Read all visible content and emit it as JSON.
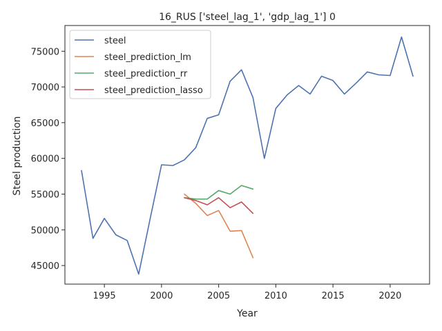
{
  "chart_data": {
    "type": "line",
    "title": "16_RUS ['steel_lag_1', 'gdp_lag_1'] 0",
    "xlabel": "Year",
    "ylabel": "Steel production",
    "xlim": [
      1991.55,
      2023.45
    ],
    "ylim": [
      42400,
      78600
    ],
    "xticks": [
      1995,
      2000,
      2005,
      2010,
      2015,
      2020
    ],
    "yticks": [
      45000,
      50000,
      55000,
      60000,
      65000,
      70000,
      75000
    ],
    "grid": false,
    "legend_position": "top-left",
    "series": [
      {
        "name": "steel",
        "color": "#4c72b0",
        "x": [
          1993,
          1994,
          1995,
          1996,
          1997,
          1998,
          1999,
          2000,
          2001,
          2002,
          2003,
          2004,
          2005,
          2006,
          2007,
          2008,
          2009,
          2010,
          2011,
          2012,
          2013,
          2014,
          2015,
          2016,
          2017,
          2018,
          2019,
          2020,
          2021,
          2022
        ],
        "y": [
          58300,
          48800,
          51600,
          49300,
          48500,
          43800,
          51500,
          59100,
          59000,
          59800,
          61500,
          65600,
          66100,
          70800,
          72400,
          68500,
          60000,
          67000,
          68900,
          70200,
          69000,
          71500,
          70900,
          69000,
          70500,
          72100,
          71700,
          71600,
          77000,
          71500
        ]
      },
      {
        "name": "steel_prediction_lm",
        "color": "#dd8452",
        "x": [
          2002,
          2003,
          2004,
          2005,
          2006,
          2007,
          2008
        ],
        "y": [
          55000,
          53700,
          52000,
          52700,
          49800,
          49900,
          46100
        ]
      },
      {
        "name": "steel_prediction_rr",
        "color": "#55a868",
        "x": [
          2002,
          2003,
          2004,
          2005,
          2006,
          2007,
          2008
        ],
        "y": [
          54500,
          54300,
          54300,
          55500,
          55000,
          56200,
          55700
        ]
      },
      {
        "name": "steel_prediction_lasso",
        "color": "#c44e52",
        "x": [
          2002,
          2003,
          2004,
          2005,
          2006,
          2007,
          2008
        ],
        "y": [
          54500,
          54100,
          53500,
          54500,
          53100,
          53900,
          52300
        ]
      }
    ]
  }
}
